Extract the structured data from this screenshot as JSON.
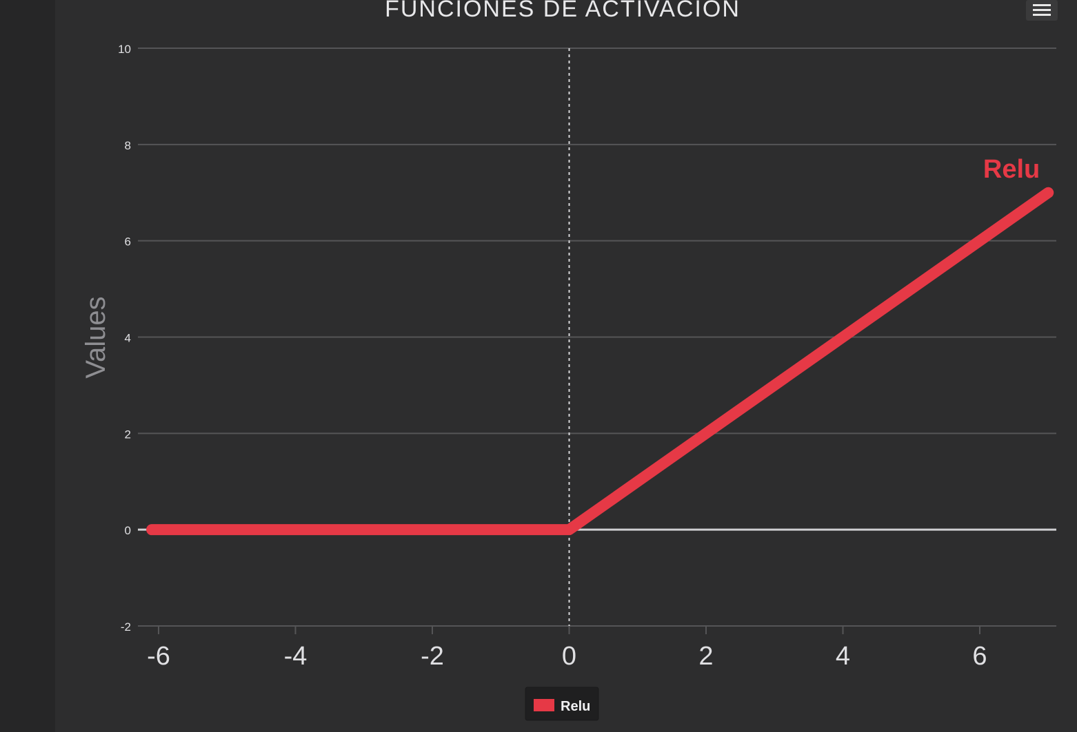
{
  "chart_data": {
    "type": "line",
    "title": "FUNCIONES DE ACTIVACION",
    "xlabel": "",
    "ylabel": "Values",
    "xlim": [
      -6.2,
      7.1
    ],
    "ylim": [
      -2,
      10
    ],
    "x_ticks": [
      -6,
      -4,
      -2,
      0,
      2,
      4,
      6
    ],
    "y_ticks": [
      -2,
      0,
      2,
      4,
      6,
      8,
      10
    ],
    "grid": true,
    "legend_position": "bottom-center",
    "series": [
      {
        "name": "Relu",
        "color": "#e63946",
        "x": [
          -6.1,
          -4,
          -2,
          0,
          2,
          4,
          6,
          7
        ],
        "y": [
          0,
          0,
          0,
          0,
          2,
          4,
          6,
          7
        ]
      }
    ],
    "annotations": [
      {
        "text": "Relu",
        "near_series": "Relu",
        "placement": "end-of-line"
      }
    ],
    "reference_line_x": 0
  },
  "toolbar": {
    "menu_icon": "hamburger-icon"
  },
  "colors": {
    "background": "#2d2d2e",
    "grid": "#555557",
    "axis_text": "#e0e0e3",
    "accent": "#e63946"
  }
}
